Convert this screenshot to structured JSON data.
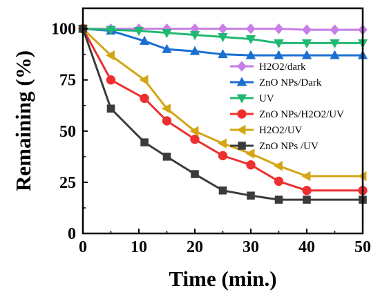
{
  "chart_data": {
    "type": "line",
    "title": "",
    "xlabel": "Time (min.)",
    "ylabel": "Remaining (%)",
    "xlim": [
      0,
      50
    ],
    "ylim": [
      0,
      110
    ],
    "x_ticks": [
      0,
      10,
      20,
      30,
      40,
      50
    ],
    "y_ticks": [
      0,
      25,
      50,
      75,
      100
    ],
    "grid": false,
    "legend_position": "center-right",
    "series": [
      {
        "name": "H2O2/dark",
        "color": "#c77ee6",
        "marker": "diamond",
        "x": [
          0,
          5,
          10,
          15,
          20,
          25,
          30,
          35,
          40,
          45,
          50
        ],
        "y": [
          100,
          100,
          100,
          100,
          100,
          100,
          100,
          100,
          99.5,
          99.5,
          99.5
        ]
      },
      {
        "name": "ZnO NPs/Dark",
        "color": "#1a6fd1",
        "marker": "triangle-up",
        "x": [
          0,
          5,
          11,
          15,
          20,
          25,
          30,
          35,
          40,
          45,
          50
        ],
        "y": [
          100,
          99,
          94,
          90,
          89,
          87.5,
          87,
          87,
          87,
          87,
          87
        ]
      },
      {
        "name": "UV",
        "color": "#1fb870",
        "marker": "triangle-down",
        "x": [
          0,
          5,
          10,
          15,
          20,
          25,
          30,
          35,
          40,
          45,
          50
        ],
        "y": [
          100,
          99.5,
          99,
          98,
          97,
          96,
          95,
          93,
          93,
          93,
          93
        ]
      },
      {
        "name": "ZnO NPs/H2O2/UV",
        "color": "#ee2f2f",
        "marker": "circle",
        "x": [
          0,
          5,
          11,
          15,
          20,
          25,
          30,
          35,
          40,
          50
        ],
        "y": [
          100,
          75,
          66,
          55,
          46,
          38,
          33.5,
          25.5,
          21,
          21
        ]
      },
      {
        "name": "H2O2/UV",
        "color": "#d4a514",
        "marker": "triangle-left",
        "x": [
          0,
          5,
          11,
          15,
          20,
          25,
          30,
          35,
          40,
          50
        ],
        "y": [
          100,
          87,
          75,
          61,
          50,
          44,
          39,
          33,
          28,
          28
        ]
      },
      {
        "name": "ZnO NPs /UV",
        "color": "#3b3b3b",
        "marker": "square",
        "x": [
          0,
          5,
          11,
          15,
          20,
          25,
          30,
          35,
          40,
          50
        ],
        "y": [
          100,
          61,
          44.5,
          37.5,
          29,
          21,
          18.5,
          16.5,
          16.5,
          16.5
        ]
      }
    ]
  }
}
